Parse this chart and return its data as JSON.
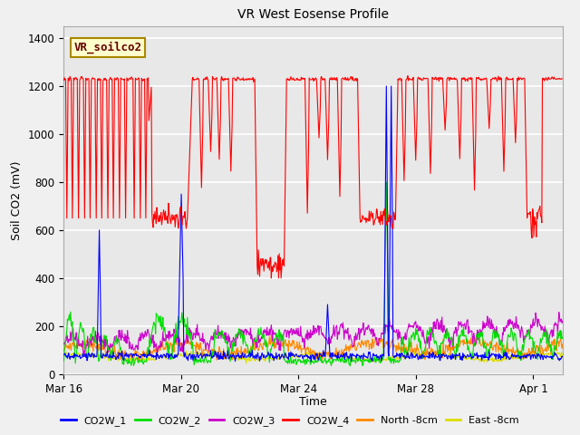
{
  "title": "VR West Eosense Profile",
  "ylabel": "Soil CO2 (mV)",
  "xlabel": "Time",
  "ylim": [
    0,
    1450
  ],
  "xlim": [
    0,
    17
  ],
  "background_color": "#f0f0f0",
  "plot_bg": "#e8e8e8",
  "annotation_box_label": "VR_soilco2",
  "annotation_box_color": "#ffffcc",
  "annotation_box_edge": "#aa8800",
  "series_colors": {
    "CO2W_1": "#0000ff",
    "CO2W_2": "#00dd00",
    "CO2W_3": "#cc00cc",
    "CO2W_4": "#ff0000",
    "North_8cm": "#ff8800",
    "East_8cm": "#dddd00"
  },
  "xtick_labels": [
    "Mar 16",
    "Mar 20",
    "Mar 24",
    "Mar 28",
    "Apr 1"
  ],
  "xtick_positions": [
    0,
    4,
    8,
    12,
    16
  ],
  "ytick_positions": [
    0,
    200,
    400,
    600,
    800,
    1000,
    1200,
    1400
  ],
  "grid_color": "#ffffff",
  "line_width": 0.8
}
